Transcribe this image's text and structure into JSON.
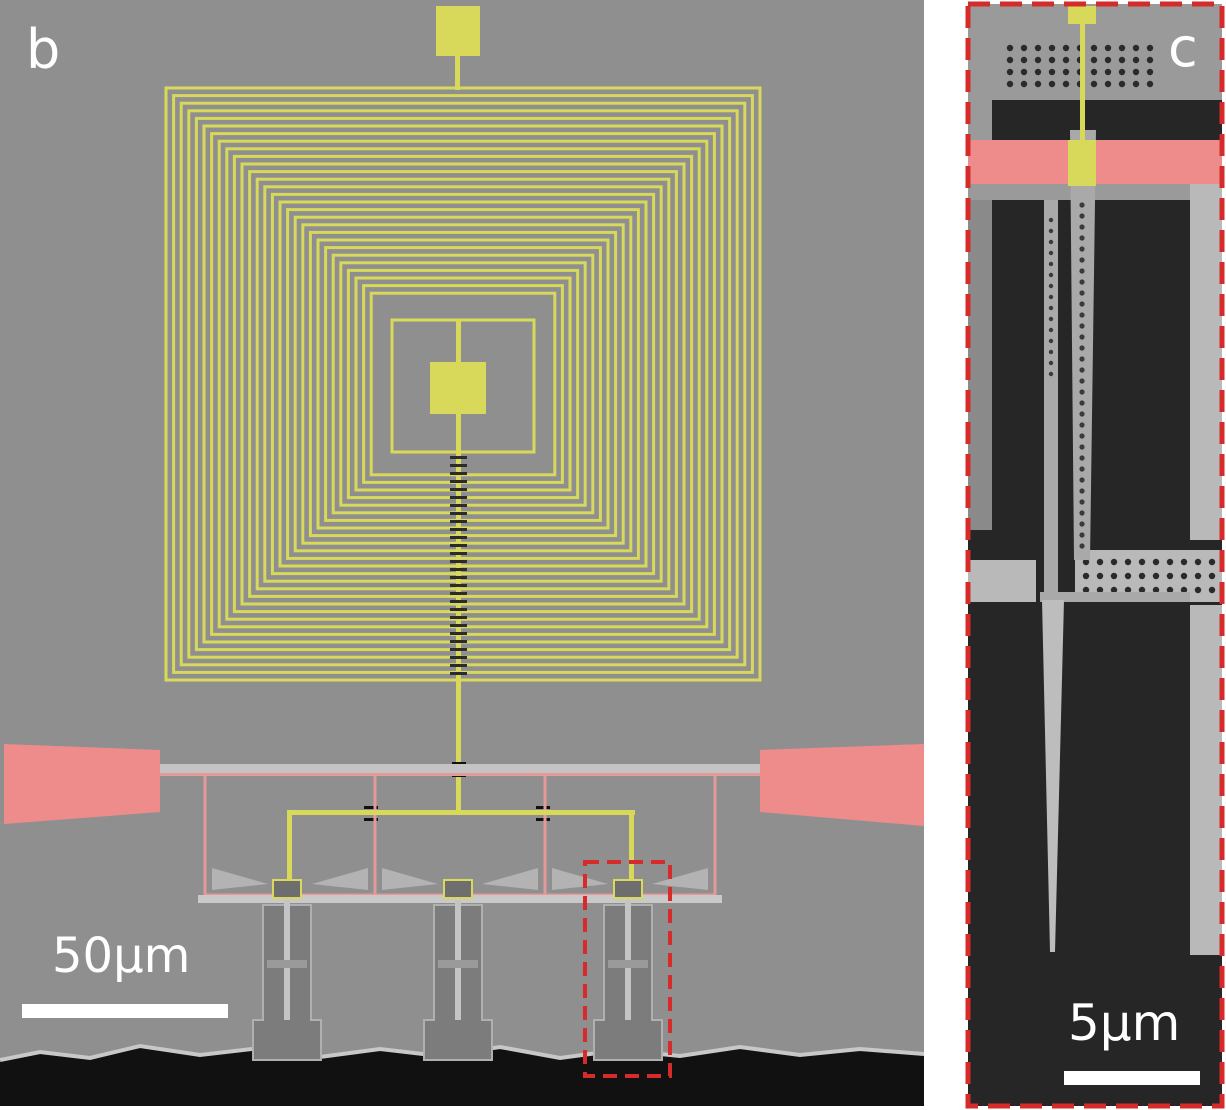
{
  "panel_b": {
    "label": "b",
    "scale_bar_text": "50µm"
  },
  "panel_c": {
    "label": "c",
    "scale_bar_text": "5µm"
  },
  "colors": {
    "substrate_gray": "#8f8f8f",
    "coil_yellow": "#d8d85a",
    "contact_red": "#ee8c8c",
    "frame_outline_red": "#d52b2b",
    "dark_cavity": "#262626",
    "bright_silicon": "#c9c9c9"
  }
}
